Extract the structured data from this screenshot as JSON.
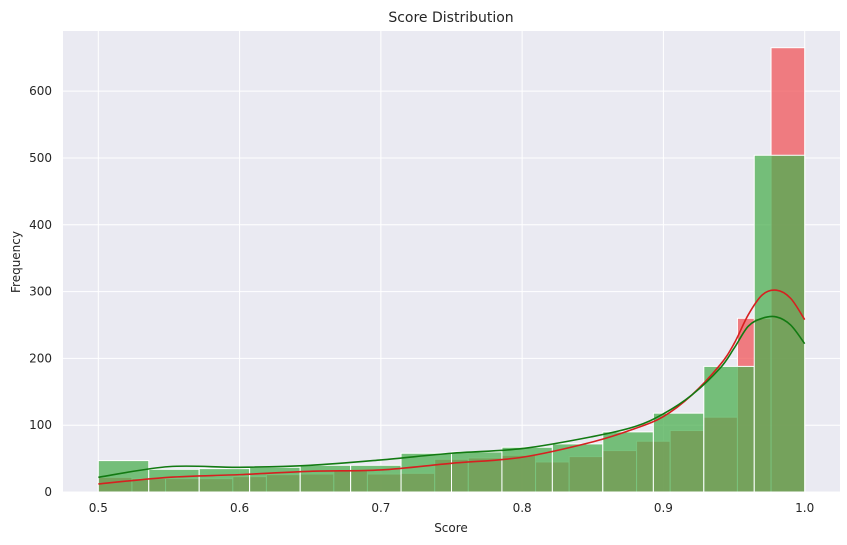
{
  "chart_data": {
    "type": "bar",
    "title": "Score Distribution",
    "xlabel": "Score",
    "ylabel": "Frequency",
    "xlim": [
      0.475,
      1.025
    ],
    "ylim": [
      0,
      690
    ],
    "xticks": [
      0.5,
      0.6,
      0.7,
      0.8,
      0.9,
      1.0
    ],
    "xtick_labels": [
      "0.5",
      "0.6",
      "0.7",
      "0.8",
      "0.9",
      "1.0"
    ],
    "yticks": [
      0,
      100,
      200,
      300,
      400,
      500,
      600
    ],
    "ytick_labels": [
      "0",
      "100",
      "200",
      "300",
      "400",
      "500",
      "600"
    ],
    "grid": true,
    "background": "#EAEAF2",
    "histograms": [
      {
        "color": "#F0555A",
        "opacity": 0.75,
        "bin_edges": [
          0.5,
          0.5238,
          0.5476,
          0.5714,
          0.5952,
          0.619,
          0.6429,
          0.6667,
          0.6905,
          0.7143,
          0.7381,
          0.7619,
          0.7857,
          0.8095,
          0.8333,
          0.8571,
          0.881,
          0.9048,
          0.9286,
          0.9524,
          0.9762,
          1.0
        ],
        "counts": [
          22,
          20,
          20,
          20,
          23,
          26,
          27,
          32,
          27,
          28,
          49,
          51,
          55,
          45,
          53,
          62,
          76,
          92,
          112,
          260,
          665
        ]
      },
      {
        "color": "#4CAF50",
        "opacity": 0.75,
        "bin_edges": [
          0.5,
          0.5357,
          0.5714,
          0.6071,
          0.6429,
          0.6786,
          0.7143,
          0.75,
          0.7857,
          0.8214,
          0.8571,
          0.8929,
          0.9286,
          0.9643,
          1.0
        ],
        "counts": [
          47,
          34,
          35,
          37,
          40,
          40,
          58,
          60,
          67,
          72,
          90,
          118,
          188,
          504
        ]
      }
    ],
    "kde_series": [
      {
        "color": "#D62020",
        "x": [
          0.5,
          0.55,
          0.6,
          0.65,
          0.7,
          0.75,
          0.8,
          0.85,
          0.88,
          0.9,
          0.92,
          0.94,
          0.95,
          0.96,
          0.97,
          0.98,
          0.99,
          1.0
        ],
        "y": [
          12,
          22,
          26,
          31,
          33,
          43,
          52,
          75,
          95,
          113,
          145,
          190,
          222,
          265,
          295,
          302,
          290,
          258
        ]
      },
      {
        "color": "#127A12",
        "x": [
          0.5,
          0.55,
          0.6,
          0.65,
          0.7,
          0.75,
          0.8,
          0.85,
          0.88,
          0.9,
          0.92,
          0.94,
          0.95,
          0.96,
          0.97,
          0.98,
          0.99,
          1.0
        ],
        "y": [
          22,
          38,
          37,
          40,
          48,
          58,
          65,
          83,
          98,
          117,
          145,
          185,
          215,
          248,
          260,
          262,
          250,
          222
        ]
      }
    ]
  }
}
